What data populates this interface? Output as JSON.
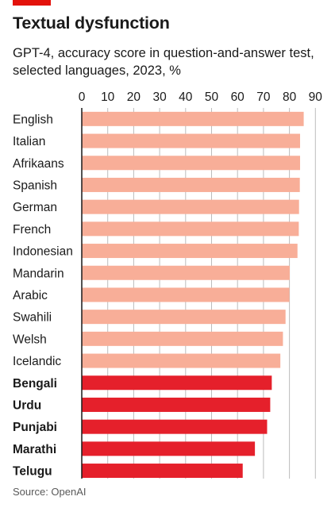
{
  "title": "Textual dysfunction",
  "subtitle": "GPT-4, accuracy score in question-and-answer test, selected languages, 2023, %",
  "source": "Source: OpenAI",
  "colors": {
    "brand": "#e3120b",
    "highlight": "#e5202b",
    "standard": "#f8ae98",
    "grid": "#bcbcbc",
    "axis": "#1a1a1a"
  },
  "chart_data": {
    "type": "bar",
    "orientation": "horizontal",
    "categories": [
      "English",
      "Italian",
      "Afrikaans",
      "Spanish",
      "German",
      "French",
      "Indonesian",
      "Mandarin",
      "Arabic",
      "Swahili",
      "Welsh",
      "Icelandic",
      "Bengali",
      "Urdu",
      "Punjabi",
      "Marathi",
      "Telugu"
    ],
    "values": [
      85.5,
      84.1,
      84.1,
      84.0,
      83.7,
      83.6,
      83.1,
      80.1,
      80.0,
      78.5,
      77.5,
      76.5,
      73.2,
      72.6,
      71.4,
      66.7,
      62.0
    ],
    "highlighted": [
      "Bengali",
      "Urdu",
      "Punjabi",
      "Marathi",
      "Telugu"
    ],
    "xlim": [
      0,
      90
    ],
    "xticks": [
      0,
      10,
      20,
      30,
      40,
      50,
      60,
      70,
      80,
      90
    ],
    "tick_position": "top",
    "grid": true,
    "legend": "none"
  }
}
